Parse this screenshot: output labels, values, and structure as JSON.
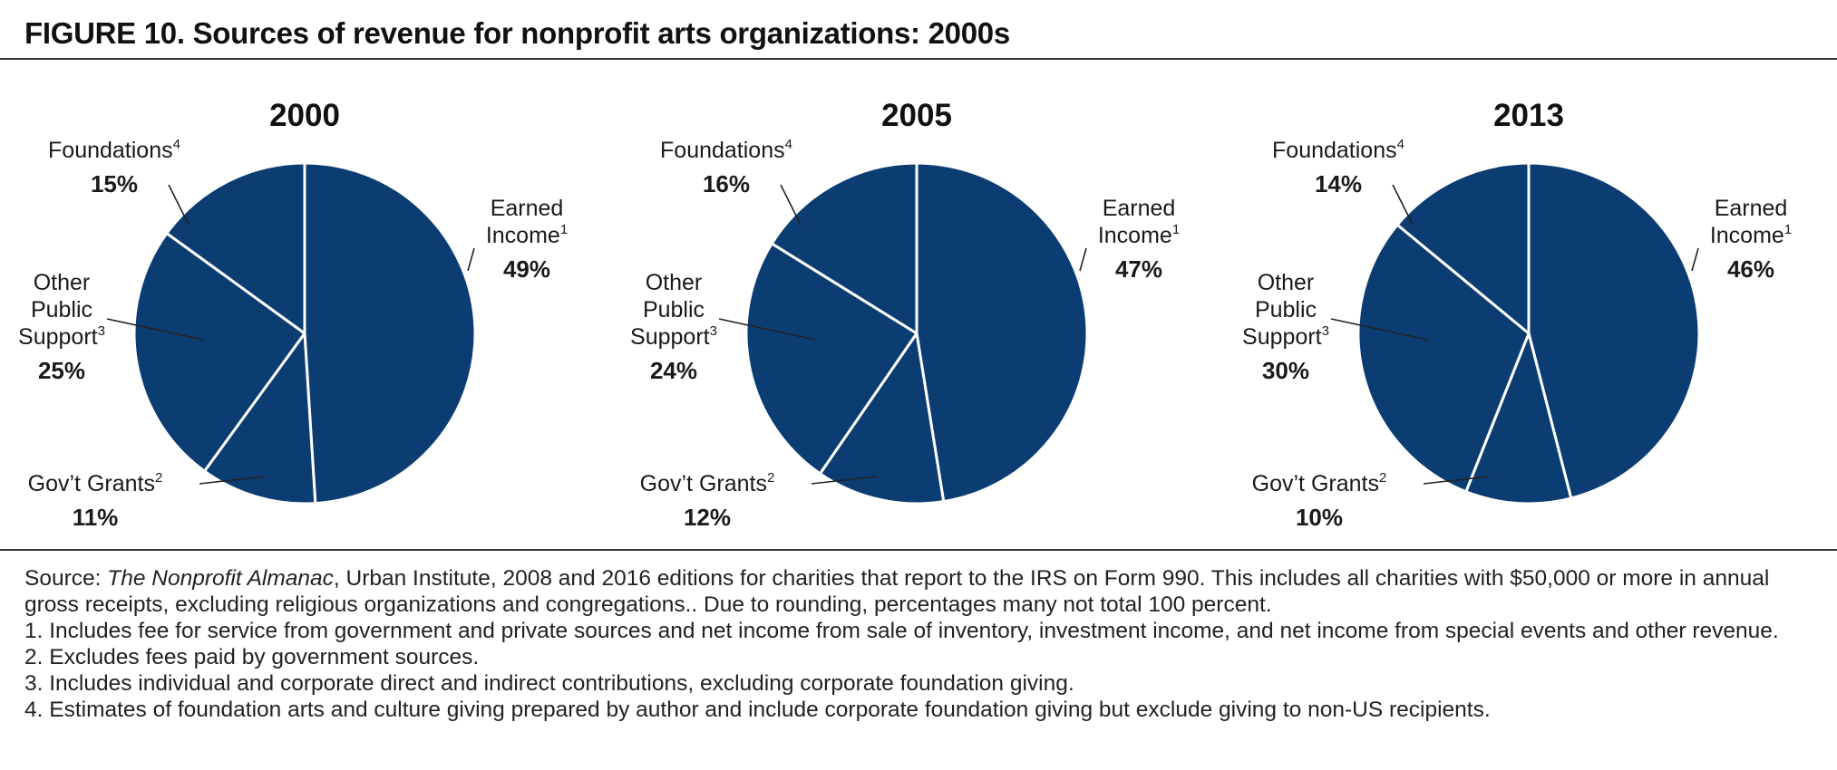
{
  "title": "FIGURE 10. Sources of revenue for nonprofit arts organizations: 2000s",
  "colors": {
    "slice": "#0b3d73",
    "divider": "#ffffff",
    "leader": "#222222",
    "text": "#1a1a1a"
  },
  "chart_data": [
    {
      "type": "pie",
      "title": "2000",
      "slices": [
        {
          "label": "Earned Income",
          "footnote": "1",
          "value": 49
        },
        {
          "label": "Gov't Grants",
          "footnote": "2",
          "value": 11
        },
        {
          "label": "Other Public Support",
          "footnote": "3",
          "value": 25
        },
        {
          "label": "Foundations",
          "footnote": "4",
          "value": 15
        }
      ],
      "display": {
        "Earned Income": {
          "lines": [
            "Earned",
            "Income"
          ],
          "pct": "49%"
        },
        "Gov't Grants": {
          "lines": [
            "Gov’t Grants"
          ],
          "pct": "11%"
        },
        "Other Public Support": {
          "lines": [
            "Other",
            "Public",
            "Support"
          ],
          "pct": "25%"
        },
        "Foundations": {
          "lines": [
            "Foundations"
          ],
          "pct": "15%"
        }
      }
    },
    {
      "type": "pie",
      "title": "2005",
      "slices": [
        {
          "label": "Earned Income",
          "footnote": "1",
          "value": 47
        },
        {
          "label": "Gov't Grants",
          "footnote": "2",
          "value": 12
        },
        {
          "label": "Other Public Support",
          "footnote": "3",
          "value": 24
        },
        {
          "label": "Foundations",
          "footnote": "4",
          "value": 16
        }
      ],
      "display": {
        "Earned Income": {
          "lines": [
            "Earned",
            "Income"
          ],
          "pct": "47%"
        },
        "Gov't Grants": {
          "lines": [
            "Gov’t Grants"
          ],
          "pct": "12%"
        },
        "Other Public Support": {
          "lines": [
            "Other",
            "Public",
            "Support"
          ],
          "pct": "24%"
        },
        "Foundations": {
          "lines": [
            "Foundations"
          ],
          "pct": "16%"
        }
      }
    },
    {
      "type": "pie",
      "title": "2013",
      "slices": [
        {
          "label": "Earned Income",
          "footnote": "1",
          "value": 46
        },
        {
          "label": "Gov't Grants",
          "footnote": "2",
          "value": 10
        },
        {
          "label": "Other Public Support",
          "footnote": "3",
          "value": 30
        },
        {
          "label": "Foundations",
          "footnote": "4",
          "value": 14
        }
      ],
      "display": {
        "Earned Income": {
          "lines": [
            "Earned",
            "Income"
          ],
          "pct": "46%"
        },
        "Gov't Grants": {
          "lines": [
            "Gov’t Grants"
          ],
          "pct": "10%"
        },
        "Other Public Support": {
          "lines": [
            "Other",
            "Public",
            "Support"
          ],
          "pct": "30%"
        },
        "Foundations": {
          "lines": [
            "Foundations"
          ],
          "pct": "14%"
        }
      }
    }
  ],
  "notes": {
    "source_prefix": "Source: ",
    "source_title": "The Nonprofit Almanac",
    "source_rest": ", Urban Institute, 2008 and 2016 editions for charities that report to the IRS on Form 990. This includes all charities with $50,000 or more in annual gross receipts, excluding religious organizations and congregations.. Due to rounding, percentages many not total 100 percent.",
    "footnotes": [
      "1. Includes fee for service from government and private sources and net income from sale of inventory, investment income, and net income from special events and other revenue.",
      "2. Excludes fees paid by government sources.",
      "3. Includes individual and corporate direct and indirect contributions, excluding corporate foundation giving.",
      "4. Estimates of foundation arts and culture giving prepared by author and include corporate foundation giving but exclude giving to non-US recipients."
    ]
  }
}
